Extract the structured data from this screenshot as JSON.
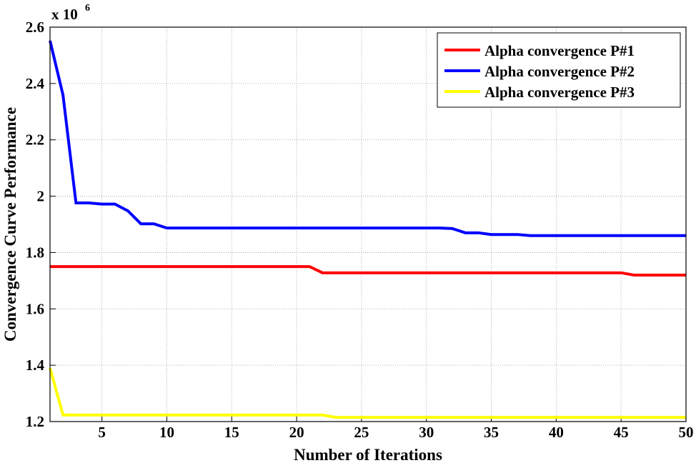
{
  "chart_data": {
    "type": "line",
    "x_label": "Number of Iterations",
    "y_label": "Convergence Curve Performance",
    "y_multiplier": {
      "base": "x 10",
      "exponent": "6"
    },
    "x": [
      1,
      2,
      3,
      4,
      5,
      6,
      7,
      8,
      9,
      10,
      11,
      12,
      13,
      14,
      15,
      16,
      17,
      18,
      19,
      20,
      21,
      22,
      23,
      24,
      25,
      26,
      27,
      28,
      29,
      30,
      31,
      32,
      33,
      34,
      35,
      36,
      37,
      38,
      39,
      40,
      41,
      42,
      43,
      44,
      45,
      46,
      47,
      48,
      49,
      50
    ],
    "series": [
      {
        "name": "Alpha convergence P#1",
        "color": "#ff0000",
        "values": [
          1.75,
          1.75,
          1.75,
          1.75,
          1.75,
          1.75,
          1.75,
          1.75,
          1.75,
          1.75,
          1.75,
          1.75,
          1.75,
          1.75,
          1.75,
          1.75,
          1.75,
          1.75,
          1.75,
          1.75,
          1.75,
          1.728,
          1.728,
          1.728,
          1.728,
          1.728,
          1.728,
          1.728,
          1.728,
          1.728,
          1.728,
          1.728,
          1.728,
          1.728,
          1.728,
          1.728,
          1.728,
          1.728,
          1.728,
          1.728,
          1.728,
          1.728,
          1.728,
          1.728,
          1.728,
          1.72,
          1.72,
          1.72,
          1.72,
          1.72
        ]
      },
      {
        "name": "Alpha convergence P#2",
        "color": "#0000ff",
        "values": [
          2.552,
          2.359,
          1.976,
          1.976,
          1.972,
          1.972,
          1.948,
          1.902,
          1.902,
          1.887,
          1.887,
          1.887,
          1.887,
          1.887,
          1.887,
          1.887,
          1.887,
          1.887,
          1.887,
          1.887,
          1.887,
          1.887,
          1.887,
          1.887,
          1.887,
          1.887,
          1.887,
          1.887,
          1.887,
          1.887,
          1.887,
          1.885,
          1.87,
          1.87,
          1.864,
          1.864,
          1.864,
          1.86,
          1.86,
          1.86,
          1.86,
          1.86,
          1.86,
          1.86,
          1.86,
          1.86,
          1.86,
          1.86,
          1.86,
          1.86
        ]
      },
      {
        "name": "Alpha convergence P#3",
        "color": "#ffff00",
        "values": [
          1.39,
          1.223,
          1.223,
          1.223,
          1.223,
          1.223,
          1.223,
          1.223,
          1.223,
          1.223,
          1.223,
          1.223,
          1.223,
          1.223,
          1.223,
          1.223,
          1.223,
          1.223,
          1.223,
          1.223,
          1.223,
          1.223,
          1.215,
          1.215,
          1.215,
          1.215,
          1.215,
          1.215,
          1.215,
          1.215,
          1.215,
          1.215,
          1.215,
          1.215,
          1.215,
          1.215,
          1.215,
          1.215,
          1.215,
          1.215,
          1.215,
          1.215,
          1.215,
          1.215,
          1.215,
          1.215,
          1.215,
          1.215,
          1.215,
          1.215
        ]
      }
    ],
    "xlim": [
      1,
      50
    ],
    "xticks": [
      5,
      10,
      15,
      20,
      25,
      30,
      35,
      40,
      45,
      50
    ],
    "ylim": [
      1.2,
      2.6
    ],
    "yticks": [
      1.2,
      1.4,
      1.6,
      1.8,
      2,
      2.2,
      2.4,
      2.6
    ],
    "grid": true,
    "legend": "top-right"
  }
}
